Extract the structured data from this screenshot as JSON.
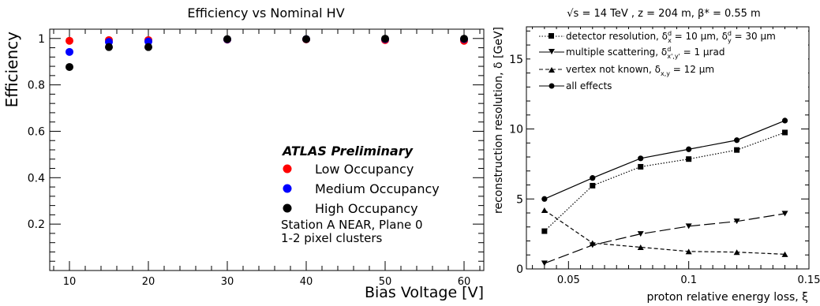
{
  "chart_data": [
    {
      "type": "scatter",
      "title": "Efficiency vs Nominal HV",
      "xlabel": "Bias Voltage [V]",
      "ylabel": "Efficiency",
      "xlim": [
        7.5,
        62.5
      ],
      "ylim": [
        0.0,
        1.04
      ],
      "x_ticks": [
        10,
        20,
        30,
        40,
        50,
        60
      ],
      "y_ticks": [
        0.2,
        0.4,
        0.6,
        0.8,
        1
      ],
      "x_tick_labels": [
        "10",
        "20",
        "30",
        "40",
        "50",
        "60"
      ],
      "y_tick_labels": [
        "0.2",
        "0.4",
        "0.6",
        "0.8",
        "1"
      ],
      "annotation_title": "ATLAS Preliminary",
      "annotation_lines": [
        "Station  A NEAR,  Plane 0",
        "1-2 pixel clusters"
      ],
      "legend_position": "bottom-right",
      "series": [
        {
          "name": "Low Occupancy",
          "color": "#ff0000",
          "x": [
            10,
            15,
            20,
            30,
            40,
            50,
            60
          ],
          "y": [
            0.99,
            0.993,
            0.993,
            0.995,
            0.996,
            0.993,
            0.99
          ]
        },
        {
          "name": "Medium Occupancy",
          "color": "#0000ff",
          "x": [
            10,
            15,
            20,
            30,
            40,
            50,
            60
          ],
          "y": [
            0.942,
            0.985,
            0.987,
            0.996,
            0.997,
            0.997,
            0.997
          ]
        },
        {
          "name": "High Occupancy",
          "color": "#000000",
          "x": [
            10,
            15,
            20,
            30,
            40,
            50,
            60
          ],
          "y": [
            0.877,
            0.963,
            0.963,
            0.997,
            0.997,
            0.999,
            0.999
          ]
        }
      ]
    },
    {
      "type": "line",
      "title": "√s = 14 TeV , z = 204 m, β* = 0.55 m",
      "xlabel": "proton relative energy loss, ξ",
      "ylabel": "reconstruction resolution, δ [GeV]",
      "xlim": [
        0.0325,
        0.15
      ],
      "ylim": [
        0,
        17.3
      ],
      "x_ticks": [
        0.05,
        0.1,
        0.15
      ],
      "y_ticks": [
        0,
        5,
        10,
        15
      ],
      "x_tick_labels": [
        "0.05",
        "0.1",
        "0.15"
      ],
      "y_tick_labels": [
        "0",
        "5",
        "10",
        "15"
      ],
      "legend_position": "top-left",
      "x": [
        0.04,
        0.06,
        0.08,
        0.1,
        0.12,
        0.14
      ],
      "series": [
        {
          "name": "detector resolution, δ",
          "legend_html": "detector resolution, δ<tspan baseline-shift='super' font-size='8'>d</tspan><tspan baseline-shift='sub' font-size='8'>x</tspan> = 10 μm, δ<tspan baseline-shift='super' font-size='8'>d</tspan><tspan baseline-shift='sub' font-size='8'>y</tspan> = 30 μm",
          "marker": "square",
          "dash": "1.5,2",
          "values": [
            2.7,
            5.95,
            7.3,
            7.85,
            8.5,
            9.75
          ]
        },
        {
          "name": "multiple scattering",
          "marker": "triangle-down",
          "dash": "14,5",
          "values": [
            0.4,
            1.7,
            2.5,
            3.05,
            3.4,
            3.95
          ]
        },
        {
          "name": "vertex not known",
          "marker": "triangle-up",
          "dash": "5,3",
          "values": [
            4.2,
            1.85,
            1.55,
            1.25,
            1.2,
            1.05
          ]
        },
        {
          "name": "all effects",
          "marker": "circle",
          "dash": "",
          "values": [
            5.0,
            6.5,
            7.9,
            8.55,
            9.2,
            10.6
          ]
        }
      ],
      "legend_labels": {
        "detector": {
          "pre": "detector resolution, δ",
          "sup1": "d",
          "sub1": "x",
          "mid": " = 10 μm, δ",
          "sup2": "d",
          "sub2": "y",
          "post": " = 30 μm"
        },
        "scattering": {
          "pre": "multiple scattering, δ",
          "sup1": "d",
          "sub1": "x',y'",
          "post": " = 1 μrad"
        },
        "vertex": {
          "pre": "vertex not known, δ",
          "sub1": "x,y",
          "post": " = 12 μm"
        },
        "all": {
          "pre": "all effects"
        }
      }
    }
  ]
}
